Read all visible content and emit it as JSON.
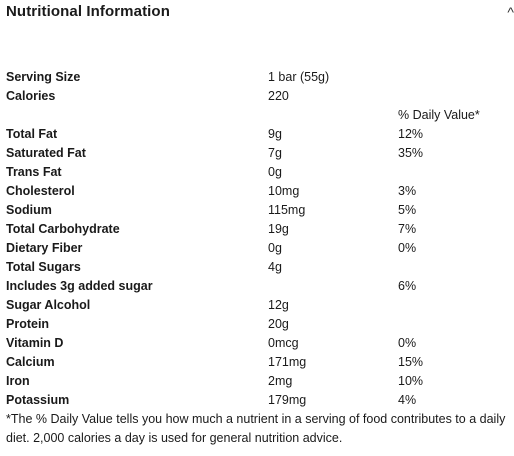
{
  "header": {
    "title": "Nutritional Information",
    "collapse_icon": "chevron-up-icon",
    "collapse_glyph": "^"
  },
  "rows": {
    "serving_size": {
      "label": "Serving Size",
      "amount": "1 bar (55g)"
    },
    "calories": {
      "label": "Calories",
      "amount": "220"
    },
    "dv_header": {
      "dv": "% Daily Value*"
    },
    "total_fat": {
      "label": "Total Fat",
      "amount": "9g",
      "dv": "12%"
    },
    "saturated_fat": {
      "label": "Saturated Fat",
      "amount": "7g",
      "dv": "35%"
    },
    "trans_fat": {
      "label": "Trans Fat",
      "amount": "0g"
    },
    "cholesterol": {
      "label": "Cholesterol",
      "amount": "10mg",
      "dv": "3%"
    },
    "sodium": {
      "label": "Sodium",
      "amount": "115mg",
      "dv": "5%"
    },
    "total_carbohydrate": {
      "label": "Total Carbohydrate",
      "amount": "19g",
      "dv": "7%"
    },
    "dietary_fiber": {
      "label": "Dietary Fiber",
      "amount": "0g",
      "dv": "0%"
    },
    "total_sugars": {
      "label": "Total Sugars",
      "amount": "4g"
    },
    "added_sugar": {
      "label": "Includes 3g added sugar",
      "dv": "6%"
    },
    "sugar_alcohol": {
      "label": "Sugar Alcohol",
      "amount": "12g"
    },
    "protein": {
      "label": "Protein",
      "amount": "20g"
    },
    "vitamin_d": {
      "label": "Vitamin D",
      "amount": "0mcg",
      "dv": "0%"
    },
    "calcium": {
      "label": "Calcium",
      "amount": "171mg",
      "dv": "15%"
    },
    "iron": {
      "label": "Iron",
      "amount": "2mg",
      "dv": "10%"
    },
    "potassium": {
      "label": "Potassium",
      "amount": "179mg",
      "dv": "4%"
    }
  },
  "footnote": "*The % Daily Value tells you how much a nutrient in a serving of food contributes to a daily diet. 2,000 calories a day is used for general nutrition advice."
}
